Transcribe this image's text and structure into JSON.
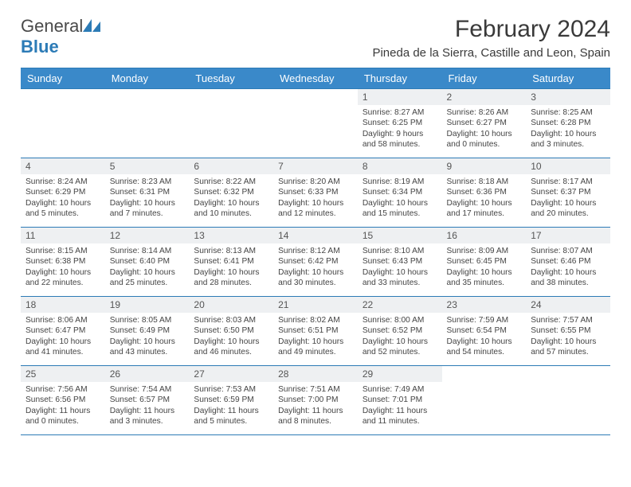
{
  "logo": {
    "word1": "General",
    "word2": "Blue"
  },
  "title": "February 2024",
  "subtitle": "Pineda de la Sierra, Castille and Leon, Spain",
  "weekdays": [
    "Sunday",
    "Monday",
    "Tuesday",
    "Wednesday",
    "Thursday",
    "Friday",
    "Saturday"
  ],
  "colors": {
    "header_bg": "#3a89c9",
    "header_text": "#ffffff",
    "border": "#2c7bb6",
    "daynum_bg": "#eef0f2",
    "text": "#3a3a3a",
    "logo_blue": "#2c7bb6",
    "page_bg": "#ffffff"
  },
  "type": "calendar",
  "weeks": [
    [
      {
        "empty": true
      },
      {
        "empty": true
      },
      {
        "empty": true
      },
      {
        "empty": true
      },
      {
        "n": "1",
        "sr": "Sunrise: 8:27 AM",
        "ss": "Sunset: 6:25 PM",
        "d1": "Daylight: 9 hours",
        "d2": "and 58 minutes."
      },
      {
        "n": "2",
        "sr": "Sunrise: 8:26 AM",
        "ss": "Sunset: 6:27 PM",
        "d1": "Daylight: 10 hours",
        "d2": "and 0 minutes."
      },
      {
        "n": "3",
        "sr": "Sunrise: 8:25 AM",
        "ss": "Sunset: 6:28 PM",
        "d1": "Daylight: 10 hours",
        "d2": "and 3 minutes."
      }
    ],
    [
      {
        "n": "4",
        "sr": "Sunrise: 8:24 AM",
        "ss": "Sunset: 6:29 PM",
        "d1": "Daylight: 10 hours",
        "d2": "and 5 minutes."
      },
      {
        "n": "5",
        "sr": "Sunrise: 8:23 AM",
        "ss": "Sunset: 6:31 PM",
        "d1": "Daylight: 10 hours",
        "d2": "and 7 minutes."
      },
      {
        "n": "6",
        "sr": "Sunrise: 8:22 AM",
        "ss": "Sunset: 6:32 PM",
        "d1": "Daylight: 10 hours",
        "d2": "and 10 minutes."
      },
      {
        "n": "7",
        "sr": "Sunrise: 8:20 AM",
        "ss": "Sunset: 6:33 PM",
        "d1": "Daylight: 10 hours",
        "d2": "and 12 minutes."
      },
      {
        "n": "8",
        "sr": "Sunrise: 8:19 AM",
        "ss": "Sunset: 6:34 PM",
        "d1": "Daylight: 10 hours",
        "d2": "and 15 minutes."
      },
      {
        "n": "9",
        "sr": "Sunrise: 8:18 AM",
        "ss": "Sunset: 6:36 PM",
        "d1": "Daylight: 10 hours",
        "d2": "and 17 minutes."
      },
      {
        "n": "10",
        "sr": "Sunrise: 8:17 AM",
        "ss": "Sunset: 6:37 PM",
        "d1": "Daylight: 10 hours",
        "d2": "and 20 minutes."
      }
    ],
    [
      {
        "n": "11",
        "sr": "Sunrise: 8:15 AM",
        "ss": "Sunset: 6:38 PM",
        "d1": "Daylight: 10 hours",
        "d2": "and 22 minutes."
      },
      {
        "n": "12",
        "sr": "Sunrise: 8:14 AM",
        "ss": "Sunset: 6:40 PM",
        "d1": "Daylight: 10 hours",
        "d2": "and 25 minutes."
      },
      {
        "n": "13",
        "sr": "Sunrise: 8:13 AM",
        "ss": "Sunset: 6:41 PM",
        "d1": "Daylight: 10 hours",
        "d2": "and 28 minutes."
      },
      {
        "n": "14",
        "sr": "Sunrise: 8:12 AM",
        "ss": "Sunset: 6:42 PM",
        "d1": "Daylight: 10 hours",
        "d2": "and 30 minutes."
      },
      {
        "n": "15",
        "sr": "Sunrise: 8:10 AM",
        "ss": "Sunset: 6:43 PM",
        "d1": "Daylight: 10 hours",
        "d2": "and 33 minutes."
      },
      {
        "n": "16",
        "sr": "Sunrise: 8:09 AM",
        "ss": "Sunset: 6:45 PM",
        "d1": "Daylight: 10 hours",
        "d2": "and 35 minutes."
      },
      {
        "n": "17",
        "sr": "Sunrise: 8:07 AM",
        "ss": "Sunset: 6:46 PM",
        "d1": "Daylight: 10 hours",
        "d2": "and 38 minutes."
      }
    ],
    [
      {
        "n": "18",
        "sr": "Sunrise: 8:06 AM",
        "ss": "Sunset: 6:47 PM",
        "d1": "Daylight: 10 hours",
        "d2": "and 41 minutes."
      },
      {
        "n": "19",
        "sr": "Sunrise: 8:05 AM",
        "ss": "Sunset: 6:49 PM",
        "d1": "Daylight: 10 hours",
        "d2": "and 43 minutes."
      },
      {
        "n": "20",
        "sr": "Sunrise: 8:03 AM",
        "ss": "Sunset: 6:50 PM",
        "d1": "Daylight: 10 hours",
        "d2": "and 46 minutes."
      },
      {
        "n": "21",
        "sr": "Sunrise: 8:02 AM",
        "ss": "Sunset: 6:51 PM",
        "d1": "Daylight: 10 hours",
        "d2": "and 49 minutes."
      },
      {
        "n": "22",
        "sr": "Sunrise: 8:00 AM",
        "ss": "Sunset: 6:52 PM",
        "d1": "Daylight: 10 hours",
        "d2": "and 52 minutes."
      },
      {
        "n": "23",
        "sr": "Sunrise: 7:59 AM",
        "ss": "Sunset: 6:54 PM",
        "d1": "Daylight: 10 hours",
        "d2": "and 54 minutes."
      },
      {
        "n": "24",
        "sr": "Sunrise: 7:57 AM",
        "ss": "Sunset: 6:55 PM",
        "d1": "Daylight: 10 hours",
        "d2": "and 57 minutes."
      }
    ],
    [
      {
        "n": "25",
        "sr": "Sunrise: 7:56 AM",
        "ss": "Sunset: 6:56 PM",
        "d1": "Daylight: 11 hours",
        "d2": "and 0 minutes."
      },
      {
        "n": "26",
        "sr": "Sunrise: 7:54 AM",
        "ss": "Sunset: 6:57 PM",
        "d1": "Daylight: 11 hours",
        "d2": "and 3 minutes."
      },
      {
        "n": "27",
        "sr": "Sunrise: 7:53 AM",
        "ss": "Sunset: 6:59 PM",
        "d1": "Daylight: 11 hours",
        "d2": "and 5 minutes."
      },
      {
        "n": "28",
        "sr": "Sunrise: 7:51 AM",
        "ss": "Sunset: 7:00 PM",
        "d1": "Daylight: 11 hours",
        "d2": "and 8 minutes."
      },
      {
        "n": "29",
        "sr": "Sunrise: 7:49 AM",
        "ss": "Sunset: 7:01 PM",
        "d1": "Daylight: 11 hours",
        "d2": "and 11 minutes."
      },
      {
        "empty": true
      },
      {
        "empty": true
      }
    ]
  ]
}
